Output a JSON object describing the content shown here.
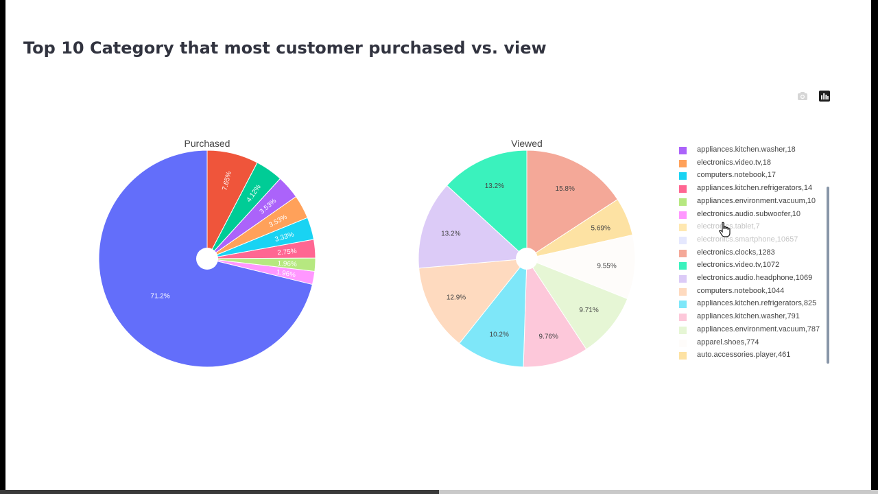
{
  "page": {
    "title": "Top 10 Category that most customer purchased vs. view"
  },
  "modebar": {
    "camera_icon": "camera-icon",
    "chart_icon": "plotly-bar-chart-icon"
  },
  "chart_data": [
    {
      "type": "pie",
      "subtitle": "Purchased",
      "hole": true,
      "direction": "counterclockwise",
      "slices": [
        {
          "label": "71.2%",
          "value": 71.2,
          "color": "#636efa"
        },
        {
          "label": "1.96%",
          "value": 1.96,
          "color": "#ff97ff"
        },
        {
          "label": "1.96%",
          "value": 1.96,
          "color": "#b6e880"
        },
        {
          "label": "2.75%",
          "value": 2.75,
          "color": "#ff6692"
        },
        {
          "label": "3.33%",
          "value": 3.33,
          "color": "#19d3f3"
        },
        {
          "label": "3.53%",
          "value": 3.53,
          "color": "#ffa15a"
        },
        {
          "label": "3.53%",
          "value": 3.53,
          "color": "#ab63fa"
        },
        {
          "label": "4.12%",
          "value": 4.12,
          "color": "#00cc96"
        },
        {
          "label": "7.65%",
          "value": 7.65,
          "color": "#ef553b"
        }
      ]
    },
    {
      "type": "pie",
      "subtitle": "Viewed",
      "hole": true,
      "direction": "clockwise",
      "slices": [
        {
          "label": "15.8%",
          "value": 15.8,
          "color": "#f4a898"
        },
        {
          "label": "5.69%",
          "value": 5.69,
          "color": "#fde2a3"
        },
        {
          "label": "9.55%",
          "value": 9.55,
          "color": "#fefcfa"
        },
        {
          "label": "9.71%",
          "value": 9.71,
          "color": "#e6f6d5"
        },
        {
          "label": "9.76%",
          "value": 9.76,
          "color": "#fdc8da"
        },
        {
          "label": "10.2%",
          "value": 10.2,
          "color": "#7ee7f9"
        },
        {
          "label": "12.9%",
          "value": 12.9,
          "color": "#fedabf"
        },
        {
          "label": "13.2%",
          "value": 13.2,
          "color": "#dccbf7"
        },
        {
          "label": "13.2%",
          "value": 13.2,
          "color": "#3af2bd"
        }
      ]
    }
  ],
  "legend": {
    "items": [
      {
        "label": "appliances.kitchen.washer,18",
        "color": "#ab63fa",
        "hidden": false
      },
      {
        "label": "electronics.video.tv,18",
        "color": "#ffa15a",
        "hidden": false
      },
      {
        "label": "computers.notebook,17",
        "color": "#19d3f3",
        "hidden": false
      },
      {
        "label": "appliances.kitchen.refrigerators,14",
        "color": "#ff6692",
        "hidden": false
      },
      {
        "label": "appliances.environment.vacuum,10",
        "color": "#b6e880",
        "hidden": false
      },
      {
        "label": "electronics.audio.subwoofer,10",
        "color": "#ff97ff",
        "hidden": false
      },
      {
        "label": "electronics.tablet,7",
        "color": "#fecb52",
        "hidden": true
      },
      {
        "label": "electronics.smartphone,10657",
        "color": "#c5cbfd",
        "hidden": true
      },
      {
        "label": "electronics.clocks,1283",
        "color": "#f4a898",
        "hidden": false
      },
      {
        "label": "electronics.video.tv,1072",
        "color": "#3af2bd",
        "hidden": false
      },
      {
        "label": "electronics.audio.headphone,1069",
        "color": "#dccbf7",
        "hidden": false
      },
      {
        "label": "computers.notebook,1044",
        "color": "#fedabf",
        "hidden": false
      },
      {
        "label": "appliances.kitchen.refrigerators,825",
        "color": "#7ee7f9",
        "hidden": false
      },
      {
        "label": "appliances.kitchen.washer,791",
        "color": "#fdc8da",
        "hidden": false
      },
      {
        "label": "appliances.environment.vacuum,787",
        "color": "#e6f6d5",
        "hidden": false
      },
      {
        "label": "apparel.shoes,774",
        "color": "#fefcfa",
        "hidden": false
      },
      {
        "label": "auto.accessories.player,461",
        "color": "#fde2a3",
        "hidden": false
      }
    ]
  },
  "progress": {
    "fraction": 0.5
  }
}
